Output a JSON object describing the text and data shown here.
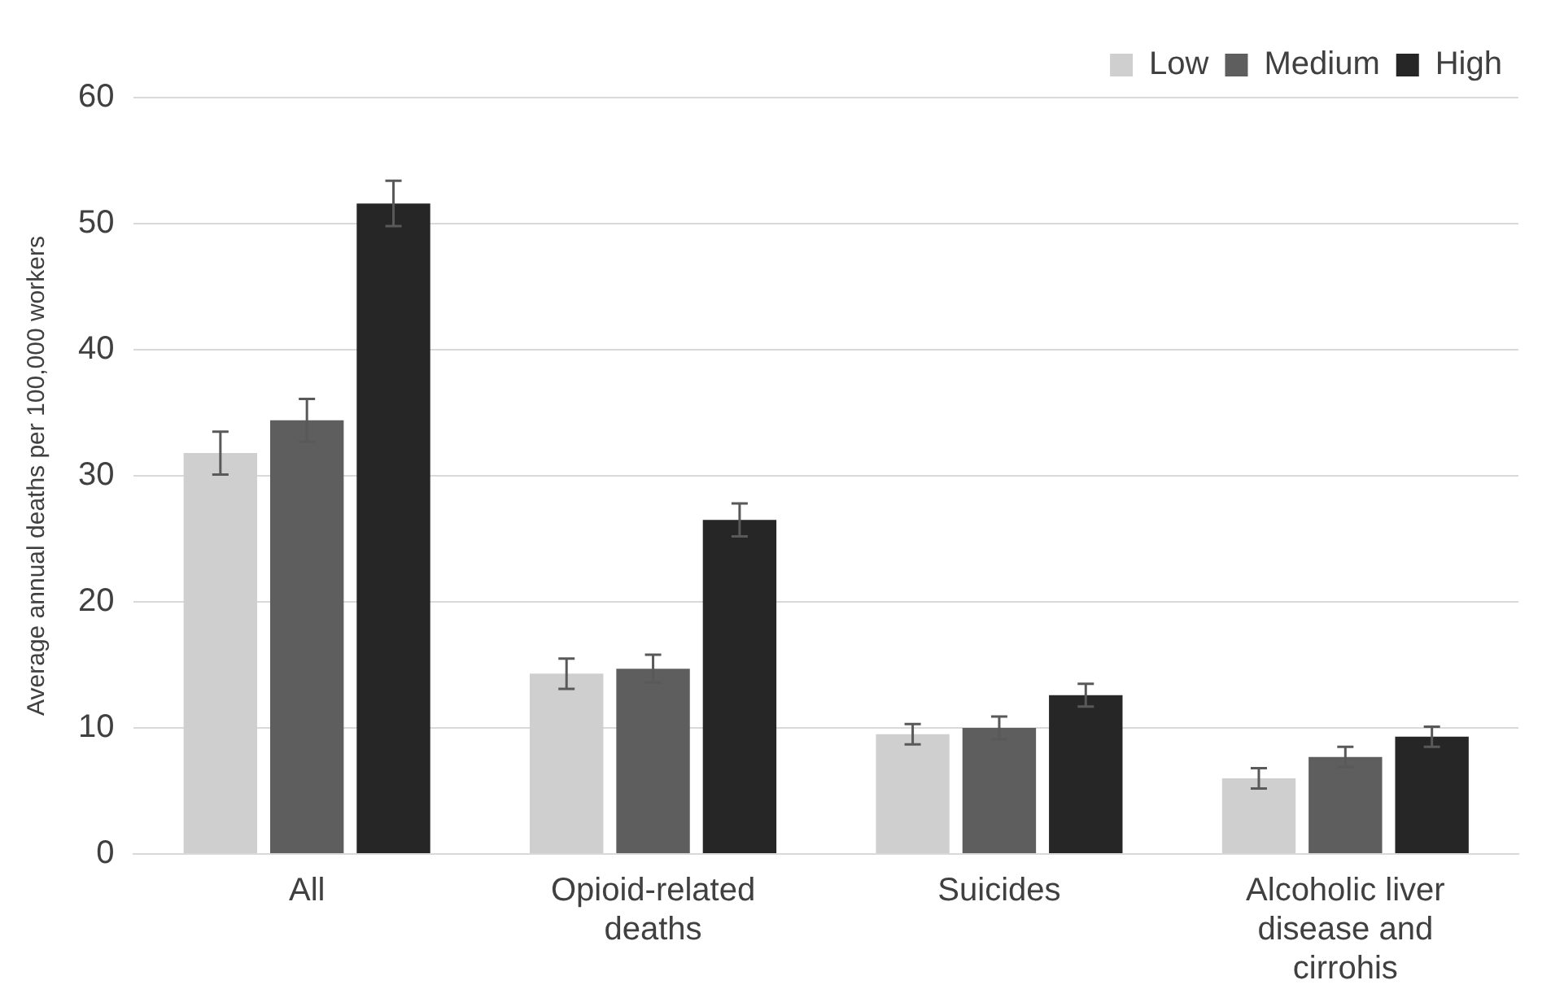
{
  "chart_data": {
    "type": "bar",
    "ylabel": "Average annual deaths per 100,000 workers",
    "categories": [
      "All",
      "Opioid-related deaths",
      "Suicides",
      "Alcoholic liver disease and cirrohis"
    ],
    "series": [
      {
        "name": "Low",
        "color": "#cfcfcf",
        "values": [
          31.8,
          14.3,
          9.5,
          6.0
        ],
        "errors": [
          1.7,
          1.2,
          0.8,
          0.8
        ]
      },
      {
        "name": "Medium",
        "color": "#5e5e5e",
        "values": [
          34.4,
          14.7,
          10.0,
          7.7
        ],
        "errors": [
          1.7,
          1.1,
          0.9,
          0.8
        ]
      },
      {
        "name": "High",
        "color": "#262626",
        "values": [
          51.6,
          26.5,
          12.6,
          9.3
        ],
        "errors": [
          1.8,
          1.3,
          0.9,
          0.8
        ]
      }
    ],
    "ylim": [
      0,
      60
    ],
    "yticks": [
      0,
      10,
      20,
      30,
      40,
      50,
      60
    ],
    "grid": "y",
    "legend": "top right"
  }
}
